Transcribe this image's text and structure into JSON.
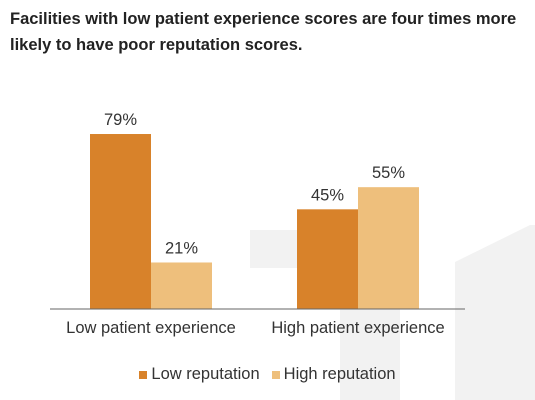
{
  "chart_data": {
    "type": "bar",
    "title": "Facilities with low patient experience scores are four times more likely to have poor reputation scores.",
    "categories": [
      "Low patient experience",
      "High patient experience"
    ],
    "series": [
      {
        "name": "Low reputation",
        "values": [
          79,
          45
        ],
        "labels": [
          "79%",
          "45%"
        ],
        "color": "#d8822a"
      },
      {
        "name": "High reputation",
        "values": [
          21,
          55
        ],
        "labels": [
          "21%",
          "55%"
        ],
        "color": "#eebf7c"
      }
    ],
    "ylim": [
      0,
      100
    ],
    "grid": false,
    "legend": "bottom"
  },
  "colors": {
    "title": "#222222",
    "axis": "#666666",
    "watermark": "#f2f2f2"
  }
}
